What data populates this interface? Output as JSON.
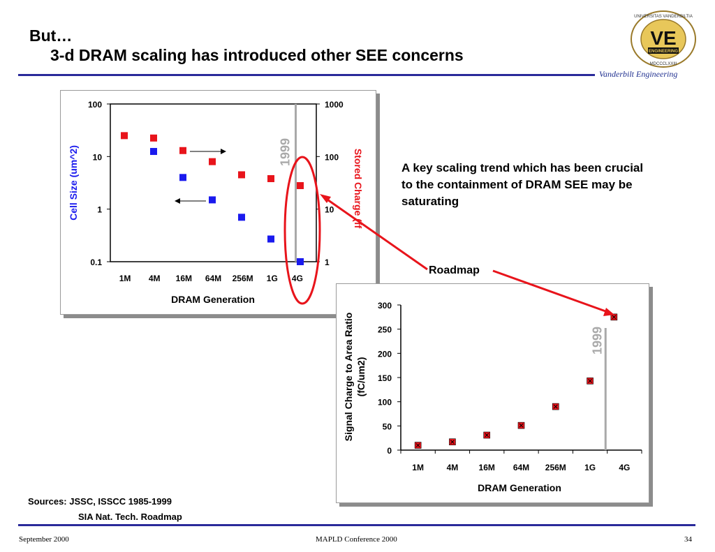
{
  "slide": {
    "title_line1": "But…",
    "title_line2": "3-d DRAM scaling has introduced other SEE concerns",
    "brand": "Vanderbilt Engineering",
    "logo_text_top": "UNIVERSITAS VANDERBILTIA",
    "logo_text_bottom": "MDCCCLXXIII",
    "logo_letters": "VE",
    "logo_banner": "ENGINEERING",
    "note": "A key scaling trend which has been crucial to the containment of DRAM SEE may be saturating",
    "roadmap_label": "Roadmap",
    "sources_line1": "Sources:  JSSC, ISSCC 1985-1999",
    "sources_line2": "SIA Nat. Tech. Roadmap",
    "footer_left": "September 2000",
    "footer_center": "MAPLD Conference 2000",
    "page_number": "34",
    "colors": {
      "rule": "#2a2a9a",
      "red": "#e8141b",
      "blue": "#1a1aee",
      "gray": "#a9a9a9"
    }
  },
  "chart_data": [
    {
      "type": "scatter",
      "title": "",
      "xlabel": "DRAM Generation",
      "ylabel": "Cell Size (um^2)",
      "y2label": "Stored Charge (ff",
      "categories": [
        "1M",
        "4M",
        "16M",
        "64M",
        "256M",
        "1G",
        "4G"
      ],
      "y_scale": "log",
      "ylim": [
        0.1,
        100
      ],
      "y_ticks": [
        "100",
        "10",
        "1",
        "0.1"
      ],
      "y2_scale": "log",
      "y2lim": [
        1,
        1000
      ],
      "y2_ticks": [
        "1000",
        "100",
        "10",
        "1"
      ],
      "vline": {
        "label": "1999",
        "position_between": [
          "1G",
          "4G"
        ]
      },
      "grid": false,
      "series": [
        {
          "name": "Cell Size (um^2)",
          "axis": "left",
          "color": "#1a1aee",
          "values": [
            null,
            12.5,
            4.0,
            1.5,
            0.7,
            0.27,
            0.1
          ]
        },
        {
          "name": "Stored Charge (ff",
          "axis": "right",
          "color": "#e8141b",
          "values": [
            250,
            225,
            130,
            80,
            45,
            38,
            28
          ]
        }
      ]
    },
    {
      "type": "scatter",
      "title": "",
      "xlabel": "DRAM Generation",
      "ylabel_line1": "Signal Charge to Area Ratio",
      "ylabel_line2": "(fC/um2)",
      "categories": [
        "1M",
        "4M",
        "16M",
        "64M",
        "256M",
        "1G",
        "4G"
      ],
      "ylim": [
        0,
        300
      ],
      "y_ticks": [
        0,
        50,
        100,
        150,
        200,
        250,
        300
      ],
      "vline": {
        "label": "1999",
        "position_between": [
          "1G",
          "4G"
        ]
      },
      "grid": false,
      "series": [
        {
          "name": "Signal Charge to Area Ratio",
          "color": "#e8141b",
          "values": [
            10,
            17,
            31,
            51,
            90,
            143,
            275
          ]
        }
      ]
    }
  ]
}
